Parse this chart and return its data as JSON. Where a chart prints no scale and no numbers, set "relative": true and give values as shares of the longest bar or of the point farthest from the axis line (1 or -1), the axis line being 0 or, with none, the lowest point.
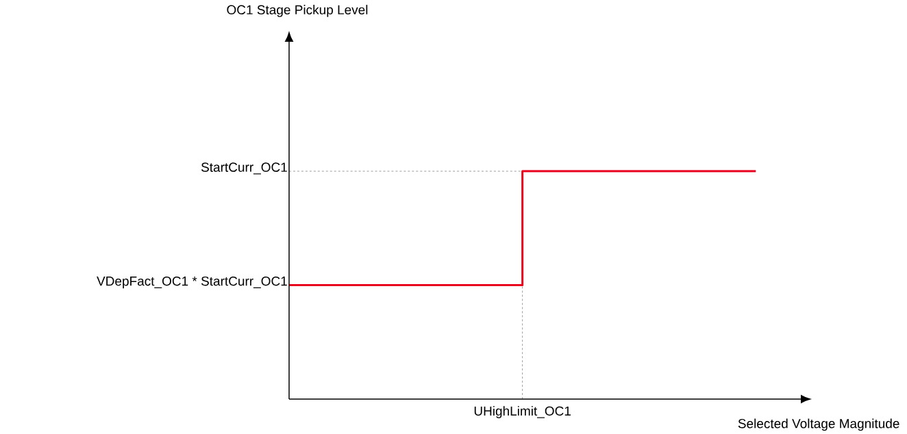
{
  "chart_data": {
    "type": "step",
    "relative": true,
    "xlabel": "Selected Voltage Magnitude",
    "annotations": [
      "OC1 Stage Pickup Level",
      "VDepFact_OC1 * StartCurr_OC1"
    ],
    "categories": [
      null,
      null,
      null
    ],
    "series": [
      {
        "color": "#e8001c",
        "values": [
          0.5,
          1,
          1
        ]
      }
    ],
    "ref_lines": [
      {
        "axis": "y",
        "value": 1,
        "label": "StartCurr_OC1",
        "line_style": "dashed"
      },
      {
        "axis": "x",
        "label": "UHighLimit_OC1",
        "line_style": "dashed"
      }
    ],
    "marker": "none",
    "line_style": "solid"
  }
}
